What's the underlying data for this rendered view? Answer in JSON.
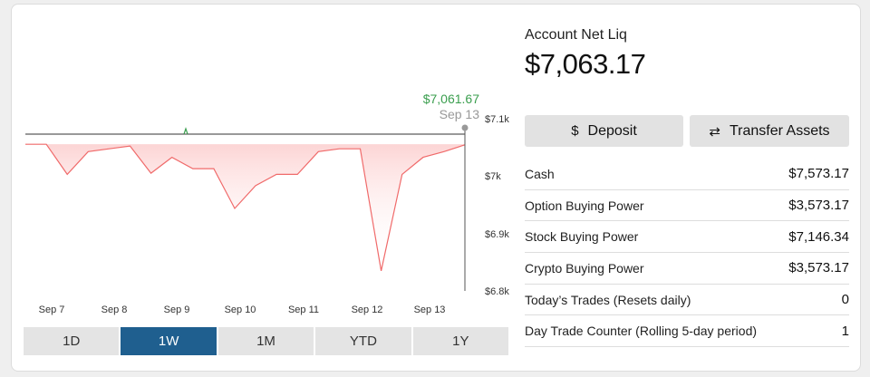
{
  "chart": {
    "hover_value": "$7,061.67",
    "hover_date": "Sep 13",
    "y_labels": [
      "$7.1k",
      "$7k",
      "$6.9k",
      "$6.8k"
    ],
    "x_labels": [
      "Sep 7",
      "Sep 8",
      "Sep 9",
      "Sep 10",
      "Sep 11",
      "Sep 12",
      "Sep 13"
    ],
    "line_color": "#f06a6a",
    "fill_color": "#fde4e4",
    "up_color": "#3a9e4e"
  },
  "chart_data": {
    "type": "line",
    "title": "",
    "xlabel": "",
    "ylabel": "",
    "ylim": [
      6800,
      7100
    ],
    "x": [
      "Sep 7",
      "Sep 8",
      "Sep 8",
      "Sep 8",
      "Sep 8",
      "Sep 9",
      "Sep 9",
      "Sep 9",
      "Sep 9",
      "Sep 10",
      "Sep 10",
      "Sep 10",
      "Sep 10",
      "Sep 11",
      "Sep 11",
      "Sep 11",
      "Sep 12",
      "Sep 12",
      "Sep 12",
      "Sep 12",
      "Sep 13",
      "Sep 13"
    ],
    "values": [
      7063,
      7063,
      7010,
      7050,
      7055,
      7060,
      7012,
      7040,
      7020,
      7020,
      6950,
      6990,
      7010,
      7010,
      7050,
      7055,
      7055,
      6840,
      7010,
      7040,
      7050,
      7062
    ],
    "baseline": 7063.17,
    "last_value": 7061.67
  },
  "range_tabs": [
    "1D",
    "1W",
    "1M",
    "YTD",
    "1Y"
  ],
  "active_range": "1W",
  "account": {
    "label": "Account Net Liq",
    "value": "$7,063.17"
  },
  "buttons": {
    "deposit": "Deposit",
    "deposit_icon": "$",
    "transfer": "Transfer Assets",
    "transfer_icon": "⇄"
  },
  "stats": [
    {
      "label": "Cash",
      "value": "$7,573.17"
    },
    {
      "label": "Option Buying Power",
      "value": "$3,573.17"
    },
    {
      "label": "Stock Buying Power",
      "value": "$7,146.34"
    },
    {
      "label": "Crypto Buying Power",
      "value": "$3,573.17"
    },
    {
      "label": "Today’s Trades (Resets daily)",
      "value": "0"
    },
    {
      "label": "Day Trade Counter (Rolling 5-day period)",
      "value": "1"
    }
  ]
}
